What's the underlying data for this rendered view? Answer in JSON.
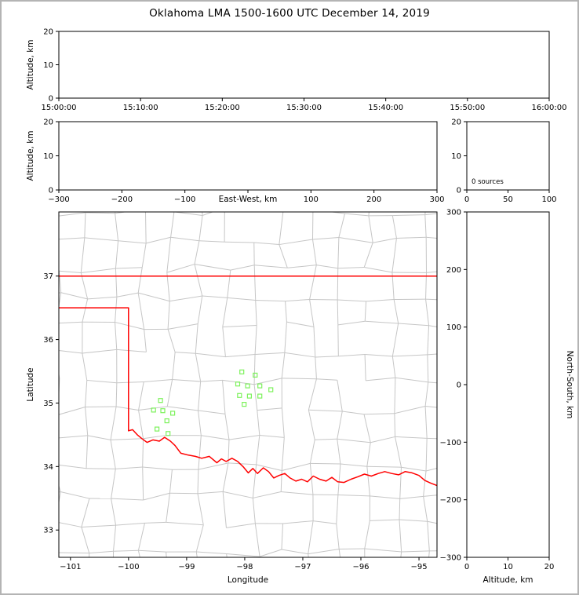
{
  "figure": {
    "title": "Oklahoma LMA 1500-1600 UTC December 14, 2019"
  },
  "colors": {
    "background": "#ffffff",
    "figure_border": "#b4b4b4",
    "axis": "#000000",
    "county_lines": "#c6c6c6",
    "state_border": "#ff0000",
    "station_marker": "#7df25c"
  },
  "chart_data": [
    {
      "id": "time_height",
      "type": "scatter",
      "xlabel": "",
      "ylabel": "Altitude, km",
      "xlim": [
        0,
        3600
      ],
      "xticks": [
        0,
        600,
        1200,
        1800,
        2400,
        3000,
        3600
      ],
      "xtick_labels": [
        "15:00:00",
        "15:10:00",
        "15:20:00",
        "15:30:00",
        "15:40:00",
        "15:50:00",
        "16:00:00"
      ],
      "ylim": [
        0,
        20
      ],
      "yticks": [
        0,
        10,
        20
      ],
      "ytick_labels": [
        "0",
        "10",
        "20"
      ],
      "points": []
    },
    {
      "id": "eastwest_height",
      "type": "scatter",
      "xlabel": "East-West, km",
      "xlabel_inline": true,
      "ylabel": "Altitude, km",
      "xlim": [
        -300,
        300
      ],
      "xticks": [
        -300,
        -200,
        -100,
        0,
        100,
        200,
        300
      ],
      "xtick_labels": [
        "−300",
        "−200",
        "−100",
        "",
        "100",
        "200",
        "300"
      ],
      "ylim": [
        0,
        20
      ],
      "yticks": [
        0,
        10,
        20
      ],
      "ytick_labels": [
        "0",
        "10",
        "20"
      ],
      "points": []
    },
    {
      "id": "altitude_histogram",
      "type": "bar",
      "xlabel": "",
      "ylabel": "",
      "xlim": [
        0,
        100
      ],
      "xticks": [
        0,
        50,
        100
      ],
      "xtick_labels": [
        "0",
        "50",
        "100"
      ],
      "ylim": [
        0,
        20
      ],
      "yticks": [
        0,
        10,
        20
      ],
      "ytick_labels": [
        "0",
        "10",
        "20"
      ],
      "annotation": "0 sources",
      "values": []
    },
    {
      "id": "plan_map",
      "type": "map",
      "xlabel": "Longitude",
      "ylabel": "Latitude",
      "xlim": [
        -101.2,
        -94.69
      ],
      "ylim": [
        32.57,
        38.01
      ],
      "xticks": [
        -101,
        -100,
        -99,
        -98,
        -97,
        -96,
        -95
      ],
      "xtick_labels": [
        "−101",
        "−100",
        "−99",
        "−98",
        "−97",
        "−96",
        "−95"
      ],
      "yticks": [
        33,
        34,
        35,
        36,
        37
      ],
      "ytick_labels": [
        "33",
        "34",
        "35",
        "36",
        "37"
      ],
      "stations": [
        [
          -98.05,
          35.49
        ],
        [
          -97.82,
          35.44
        ],
        [
          -98.12,
          35.3
        ],
        [
          -97.95,
          35.27
        ],
        [
          -97.74,
          35.27
        ],
        [
          -98.09,
          35.12
        ],
        [
          -97.92,
          35.11
        ],
        [
          -97.74,
          35.11
        ],
        [
          -97.55,
          35.21
        ],
        [
          -98.01,
          34.98
        ],
        [
          -99.45,
          35.04
        ],
        [
          -99.57,
          34.89
        ],
        [
          -99.41,
          34.88
        ],
        [
          -99.24,
          34.84
        ],
        [
          -99.34,
          34.72
        ],
        [
          -99.51,
          34.59
        ],
        [
          -99.32,
          34.52
        ]
      ],
      "state_border": {
        "north": [
          [
            -101.2,
            37.0
          ],
          [
            -94.69,
            37.0
          ]
        ],
        "panhandle": [
          [
            -101.2,
            36.5
          ],
          [
            -100.0,
            36.5
          ],
          [
            -100.0,
            34.563
          ]
        ],
        "red_river": [
          [
            -100.0,
            34.563
          ],
          [
            -99.93,
            34.58
          ],
          [
            -99.85,
            34.5
          ],
          [
            -99.77,
            34.44
          ],
          [
            -99.68,
            34.38
          ],
          [
            -99.58,
            34.42
          ],
          [
            -99.47,
            34.4
          ],
          [
            -99.38,
            34.46
          ],
          [
            -99.28,
            34.4
          ],
          [
            -99.2,
            34.33
          ],
          [
            -99.1,
            34.21
          ],
          [
            -98.97,
            34.18
          ],
          [
            -98.85,
            34.16
          ],
          [
            -98.74,
            34.13
          ],
          [
            -98.61,
            34.16
          ],
          [
            -98.48,
            34.06
          ],
          [
            -98.4,
            34.12
          ],
          [
            -98.32,
            34.08
          ],
          [
            -98.22,
            34.13
          ],
          [
            -98.12,
            34.08
          ],
          [
            -98.02,
            33.99
          ],
          [
            -97.94,
            33.9
          ],
          [
            -97.86,
            33.97
          ],
          [
            -97.78,
            33.89
          ],
          [
            -97.68,
            33.98
          ],
          [
            -97.59,
            33.92
          ],
          [
            -97.5,
            33.82
          ],
          [
            -97.41,
            33.86
          ],
          [
            -97.31,
            33.89
          ],
          [
            -97.22,
            33.82
          ],
          [
            -97.12,
            33.77
          ],
          [
            -97.02,
            33.8
          ],
          [
            -96.92,
            33.76
          ],
          [
            -96.82,
            33.85
          ],
          [
            -96.71,
            33.8
          ],
          [
            -96.6,
            33.77
          ],
          [
            -96.5,
            33.83
          ],
          [
            -96.4,
            33.76
          ],
          [
            -96.29,
            33.75
          ],
          [
            -96.17,
            33.8
          ],
          [
            -96.05,
            33.84
          ],
          [
            -95.94,
            33.88
          ],
          [
            -95.82,
            33.85
          ],
          [
            -95.7,
            33.89
          ],
          [
            -95.59,
            33.92
          ],
          [
            -95.47,
            33.89
          ],
          [
            -95.35,
            33.87
          ],
          [
            -95.24,
            33.92
          ],
          [
            -95.12,
            33.9
          ],
          [
            -95.0,
            33.86
          ],
          [
            -94.9,
            33.78
          ],
          [
            -94.8,
            33.74
          ],
          [
            -94.69,
            33.7
          ]
        ]
      }
    },
    {
      "id": "northsouth_height",
      "type": "scatter",
      "xlabel": "Altitude, km",
      "ylabel_right": "North-South, km",
      "xlim": [
        0,
        20
      ],
      "xticks": [
        0,
        10,
        20
      ],
      "xtick_labels": [
        "0",
        "10",
        "20"
      ],
      "ylim": [
        -300,
        300
      ],
      "yticks": [
        -300,
        -200,
        -100,
        0,
        100,
        200,
        300
      ],
      "ytick_labels": [
        "−300",
        "−200",
        "−100",
        "0",
        "100",
        "200",
        "300"
      ],
      "points": []
    }
  ]
}
